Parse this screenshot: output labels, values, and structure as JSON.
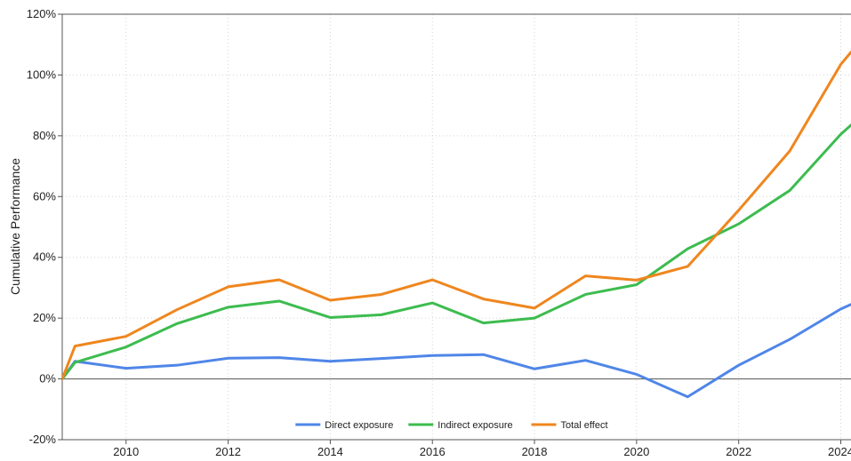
{
  "chart_data": {
    "type": "line",
    "title": "",
    "xlabel": "",
    "ylabel": "Cumulative Performance",
    "xlim": [
      2008.75,
      2024.2
    ],
    "ylim": [
      -20,
      120
    ],
    "x_ticks": [
      2010,
      2012,
      2014,
      2016,
      2018,
      2020,
      2022,
      2024
    ],
    "y_ticks": [
      -20,
      0,
      20,
      40,
      60,
      80,
      100,
      120
    ],
    "y_tick_labels": [
      "-20%",
      "0%",
      "20%",
      "40%",
      "60%",
      "80%",
      "100%",
      "120%"
    ],
    "grid": true,
    "legend_position": "bottom-center",
    "x": [
      2008.75,
      2009,
      2010,
      2011,
      2012,
      2013,
      2014,
      2015,
      2016,
      2017,
      2018,
      2019,
      2020,
      2021,
      2022,
      2023,
      2024,
      2024.2
    ],
    "series": [
      {
        "name": "Direct exposure",
        "color": "#4f86e8",
        "values": [
          0,
          5.8,
          3.5,
          4.5,
          6.8,
          7.0,
          5.8,
          6.7,
          7.7,
          8.0,
          3.3,
          6.1,
          1.5,
          -5.9,
          4.5,
          13.0,
          23.0,
          24.5
        ]
      },
      {
        "name": "Indirect exposure",
        "color": "#3dbc4f",
        "values": [
          0,
          5.4,
          10.5,
          18.2,
          23.6,
          25.6,
          20.2,
          21.1,
          25.0,
          18.4,
          20.0,
          27.8,
          31.0,
          42.8,
          51.0,
          62.0,
          80.5,
          83.5
        ]
      },
      {
        "name": "Total effect",
        "color": "#ef861e",
        "values": [
          0,
          10.8,
          14.0,
          22.8,
          30.3,
          32.6,
          25.9,
          27.8,
          32.6,
          26.3,
          23.3,
          33.9,
          32.5,
          37.0,
          55.5,
          75.0,
          103.5,
          107.5
        ]
      }
    ]
  }
}
